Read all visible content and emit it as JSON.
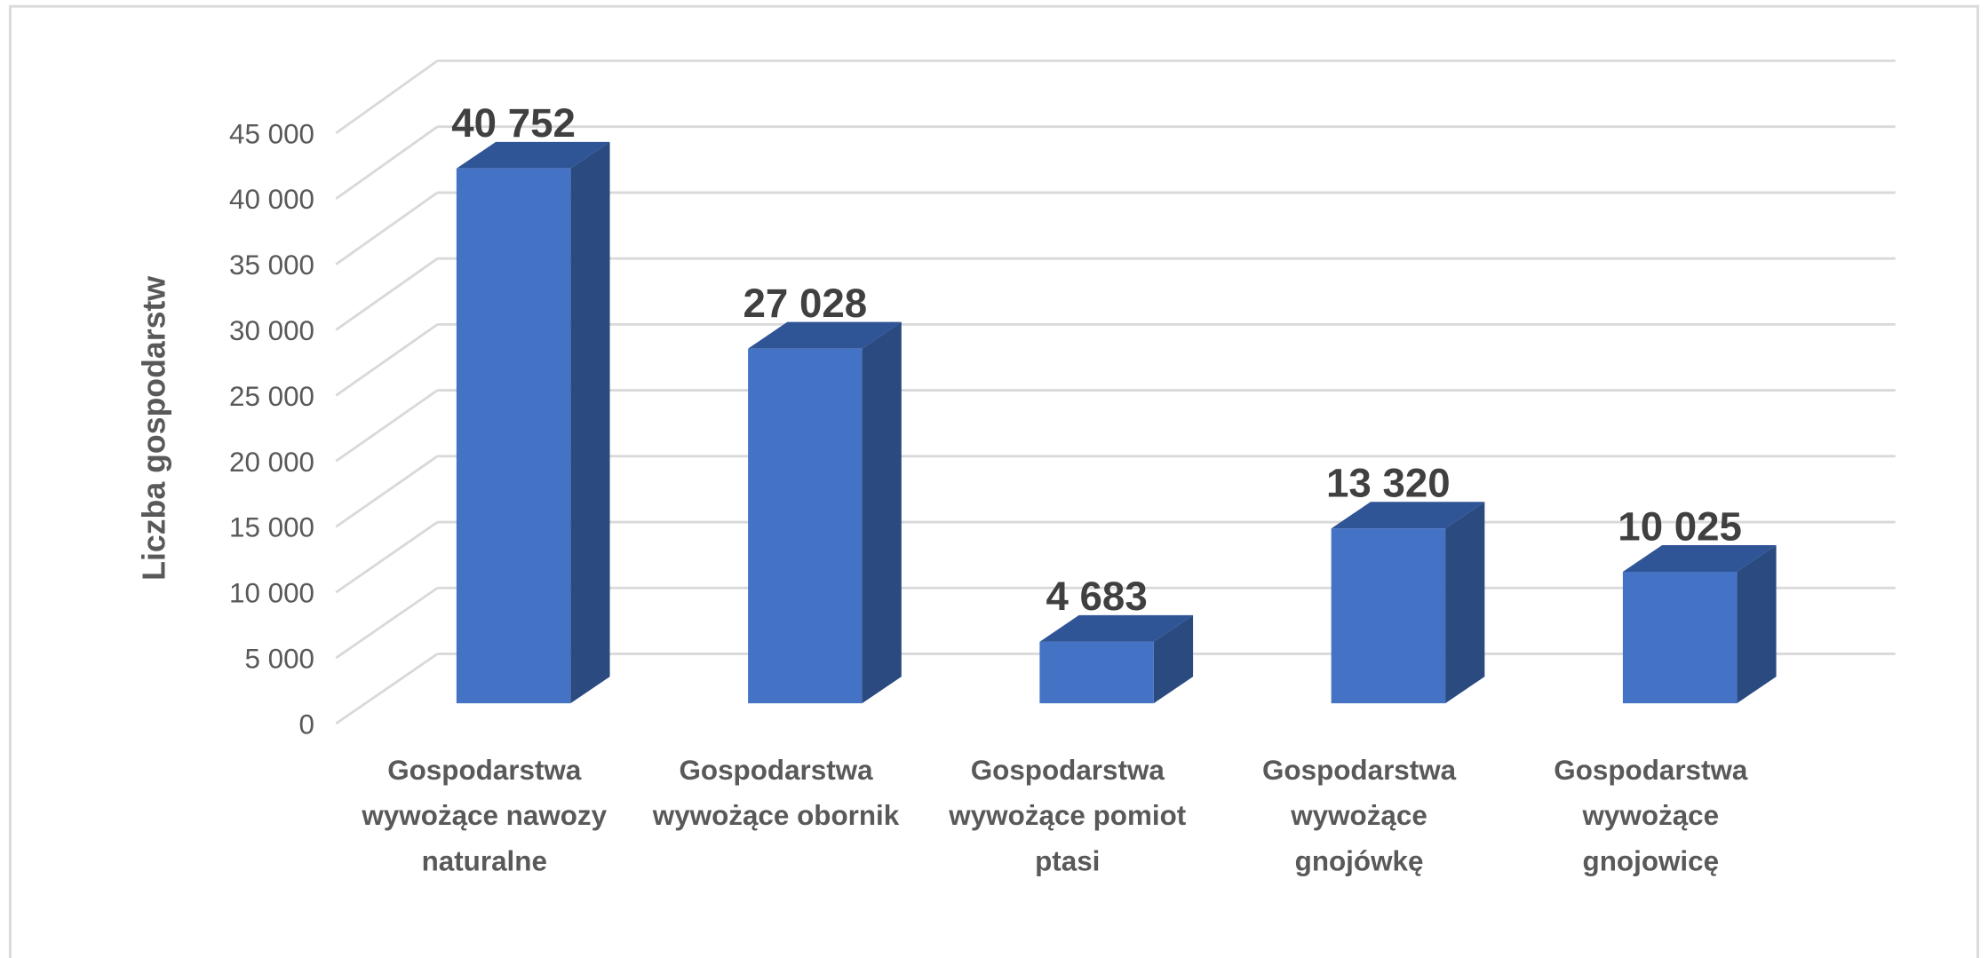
{
  "chart_data": {
    "type": "bar3d",
    "y_label": "Liczba gospodarstw",
    "categories": [
      "Gospodarstwa wywożące nawozy naturalne",
      "Gospodarstwa wywożące obornik",
      "Gospodarstwa wywożące pomiot ptasi",
      "Gospodarstwa wywożące gnojówkę",
      "Gospodarstwa wywożące gnojowicę"
    ],
    "values": [
      40752,
      27028,
      4683,
      13320,
      10025
    ],
    "value_labels": [
      "40 752",
      "27 028",
      "4 683",
      "13 320",
      "10 025"
    ],
    "color": "#4472c4",
    "ylim": [
      0,
      45000
    ],
    "yticks": [
      0,
      {
        "value": 5000,
        "label": "5 000"
      },
      {
        "value": 10000,
        "label": "10 000"
      },
      {
        "value": 15000,
        "label": "15 000"
      },
      {
        "value": 20000,
        "label": "20 000"
      },
      {
        "value": 25000,
        "label": "25 000"
      },
      {
        "value": 30000,
        "label": "30 000"
      },
      {
        "value": 35000,
        "label": "35 000"
      },
      {
        "value": 40000,
        "label": "40 000"
      },
      {
        "value": 45000,
        "label": "45 000"
      }
    ],
    "grid": true
  }
}
